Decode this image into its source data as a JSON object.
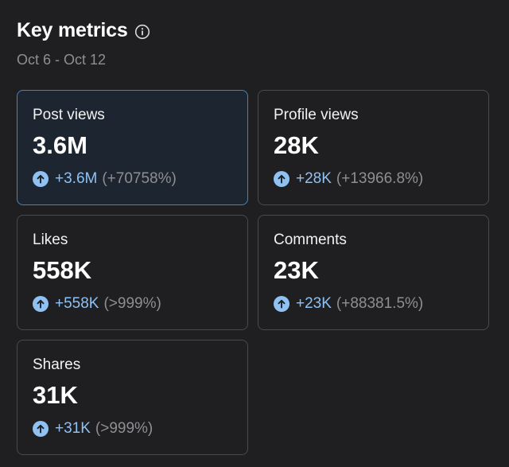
{
  "header": {
    "title": "Key metrics",
    "info_icon": "info-circle-icon",
    "date_range": "Oct 6 - Oct 12"
  },
  "colors": {
    "background": "#1f1f21",
    "card_border": "#4a4a4e",
    "selected_border": "#3e86c8",
    "positive_accent": "#8fc2f3",
    "muted_text": "#8e8e93"
  },
  "metrics": [
    {
      "label": "Post views",
      "value": "3.6M",
      "delta": "+3.6M",
      "pct": "(+70758%)",
      "selected": true,
      "trend_icon": "arrow-up-circle-icon"
    },
    {
      "label": "Profile views",
      "value": "28K",
      "delta": "+28K",
      "pct": "(+13966.8%)",
      "selected": false,
      "trend_icon": "arrow-up-circle-icon"
    },
    {
      "label": "Likes",
      "value": "558K",
      "delta": "+558K",
      "pct": "(>999%)",
      "selected": false,
      "trend_icon": "arrow-up-circle-icon"
    },
    {
      "label": "Comments",
      "value": "23K",
      "delta": "+23K",
      "pct": "(+88381.5%)",
      "selected": false,
      "trend_icon": "arrow-up-circle-icon"
    },
    {
      "label": "Shares",
      "value": "31K",
      "delta": "+31K",
      "pct": "(>999%)",
      "selected": false,
      "trend_icon": "arrow-up-circle-icon"
    }
  ]
}
